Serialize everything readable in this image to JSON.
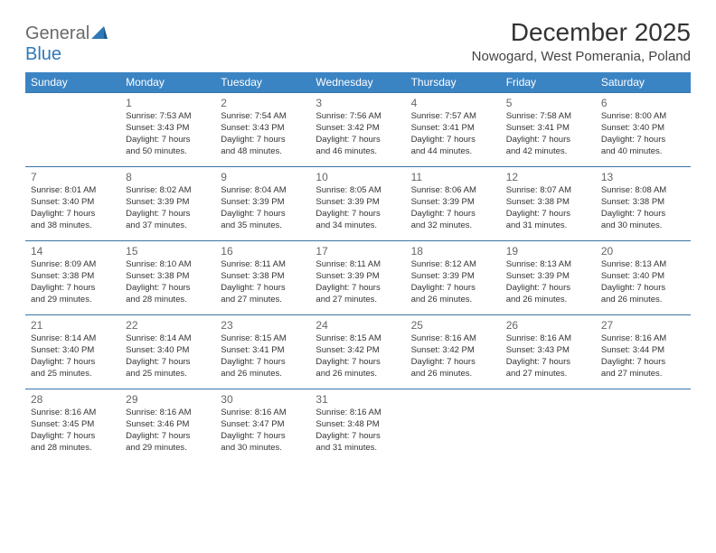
{
  "logo": {
    "general": "General",
    "blue": "Blue"
  },
  "title": "December 2025",
  "subtitle": "Nowogard, West Pomerania, Poland",
  "colors": {
    "header_bg": "#3b84c4",
    "header_text": "#ffffff",
    "row_border": "#3b73a6",
    "logo_blue": "#2f78b7",
    "logo_gray": "#6a6a6a",
    "background": "#ffffff"
  },
  "typography": {
    "title_fontsize": 28,
    "subtitle_fontsize": 15,
    "header_fontsize": 12,
    "daynum_fontsize": 12,
    "cell_fontsize": 9.5
  },
  "day_headers": [
    "Sunday",
    "Monday",
    "Tuesday",
    "Wednesday",
    "Thursday",
    "Friday",
    "Saturday"
  ],
  "weeks": [
    [
      null,
      {
        "n": "1",
        "sr": "Sunrise: 7:53 AM",
        "ss": "Sunset: 3:43 PM",
        "d1": "Daylight: 7 hours",
        "d2": "and 50 minutes."
      },
      {
        "n": "2",
        "sr": "Sunrise: 7:54 AM",
        "ss": "Sunset: 3:43 PM",
        "d1": "Daylight: 7 hours",
        "d2": "and 48 minutes."
      },
      {
        "n": "3",
        "sr": "Sunrise: 7:56 AM",
        "ss": "Sunset: 3:42 PM",
        "d1": "Daylight: 7 hours",
        "d2": "and 46 minutes."
      },
      {
        "n": "4",
        "sr": "Sunrise: 7:57 AM",
        "ss": "Sunset: 3:41 PM",
        "d1": "Daylight: 7 hours",
        "d2": "and 44 minutes."
      },
      {
        "n": "5",
        "sr": "Sunrise: 7:58 AM",
        "ss": "Sunset: 3:41 PM",
        "d1": "Daylight: 7 hours",
        "d2": "and 42 minutes."
      },
      {
        "n": "6",
        "sr": "Sunrise: 8:00 AM",
        "ss": "Sunset: 3:40 PM",
        "d1": "Daylight: 7 hours",
        "d2": "and 40 minutes."
      }
    ],
    [
      {
        "n": "7",
        "sr": "Sunrise: 8:01 AM",
        "ss": "Sunset: 3:40 PM",
        "d1": "Daylight: 7 hours",
        "d2": "and 38 minutes."
      },
      {
        "n": "8",
        "sr": "Sunrise: 8:02 AM",
        "ss": "Sunset: 3:39 PM",
        "d1": "Daylight: 7 hours",
        "d2": "and 37 minutes."
      },
      {
        "n": "9",
        "sr": "Sunrise: 8:04 AM",
        "ss": "Sunset: 3:39 PM",
        "d1": "Daylight: 7 hours",
        "d2": "and 35 minutes."
      },
      {
        "n": "10",
        "sr": "Sunrise: 8:05 AM",
        "ss": "Sunset: 3:39 PM",
        "d1": "Daylight: 7 hours",
        "d2": "and 34 minutes."
      },
      {
        "n": "11",
        "sr": "Sunrise: 8:06 AM",
        "ss": "Sunset: 3:39 PM",
        "d1": "Daylight: 7 hours",
        "d2": "and 32 minutes."
      },
      {
        "n": "12",
        "sr": "Sunrise: 8:07 AM",
        "ss": "Sunset: 3:38 PM",
        "d1": "Daylight: 7 hours",
        "d2": "and 31 minutes."
      },
      {
        "n": "13",
        "sr": "Sunrise: 8:08 AM",
        "ss": "Sunset: 3:38 PM",
        "d1": "Daylight: 7 hours",
        "d2": "and 30 minutes."
      }
    ],
    [
      {
        "n": "14",
        "sr": "Sunrise: 8:09 AM",
        "ss": "Sunset: 3:38 PM",
        "d1": "Daylight: 7 hours",
        "d2": "and 29 minutes."
      },
      {
        "n": "15",
        "sr": "Sunrise: 8:10 AM",
        "ss": "Sunset: 3:38 PM",
        "d1": "Daylight: 7 hours",
        "d2": "and 28 minutes."
      },
      {
        "n": "16",
        "sr": "Sunrise: 8:11 AM",
        "ss": "Sunset: 3:38 PM",
        "d1": "Daylight: 7 hours",
        "d2": "and 27 minutes."
      },
      {
        "n": "17",
        "sr": "Sunrise: 8:11 AM",
        "ss": "Sunset: 3:39 PM",
        "d1": "Daylight: 7 hours",
        "d2": "and 27 minutes."
      },
      {
        "n": "18",
        "sr": "Sunrise: 8:12 AM",
        "ss": "Sunset: 3:39 PM",
        "d1": "Daylight: 7 hours",
        "d2": "and 26 minutes."
      },
      {
        "n": "19",
        "sr": "Sunrise: 8:13 AM",
        "ss": "Sunset: 3:39 PM",
        "d1": "Daylight: 7 hours",
        "d2": "and 26 minutes."
      },
      {
        "n": "20",
        "sr": "Sunrise: 8:13 AM",
        "ss": "Sunset: 3:40 PM",
        "d1": "Daylight: 7 hours",
        "d2": "and 26 minutes."
      }
    ],
    [
      {
        "n": "21",
        "sr": "Sunrise: 8:14 AM",
        "ss": "Sunset: 3:40 PM",
        "d1": "Daylight: 7 hours",
        "d2": "and 25 minutes."
      },
      {
        "n": "22",
        "sr": "Sunrise: 8:14 AM",
        "ss": "Sunset: 3:40 PM",
        "d1": "Daylight: 7 hours",
        "d2": "and 25 minutes."
      },
      {
        "n": "23",
        "sr": "Sunrise: 8:15 AM",
        "ss": "Sunset: 3:41 PM",
        "d1": "Daylight: 7 hours",
        "d2": "and 26 minutes."
      },
      {
        "n": "24",
        "sr": "Sunrise: 8:15 AM",
        "ss": "Sunset: 3:42 PM",
        "d1": "Daylight: 7 hours",
        "d2": "and 26 minutes."
      },
      {
        "n": "25",
        "sr": "Sunrise: 8:16 AM",
        "ss": "Sunset: 3:42 PM",
        "d1": "Daylight: 7 hours",
        "d2": "and 26 minutes."
      },
      {
        "n": "26",
        "sr": "Sunrise: 8:16 AM",
        "ss": "Sunset: 3:43 PM",
        "d1": "Daylight: 7 hours",
        "d2": "and 27 minutes."
      },
      {
        "n": "27",
        "sr": "Sunrise: 8:16 AM",
        "ss": "Sunset: 3:44 PM",
        "d1": "Daylight: 7 hours",
        "d2": "and 27 minutes."
      }
    ],
    [
      {
        "n": "28",
        "sr": "Sunrise: 8:16 AM",
        "ss": "Sunset: 3:45 PM",
        "d1": "Daylight: 7 hours",
        "d2": "and 28 minutes."
      },
      {
        "n": "29",
        "sr": "Sunrise: 8:16 AM",
        "ss": "Sunset: 3:46 PM",
        "d1": "Daylight: 7 hours",
        "d2": "and 29 minutes."
      },
      {
        "n": "30",
        "sr": "Sunrise: 8:16 AM",
        "ss": "Sunset: 3:47 PM",
        "d1": "Daylight: 7 hours",
        "d2": "and 30 minutes."
      },
      {
        "n": "31",
        "sr": "Sunrise: 8:16 AM",
        "ss": "Sunset: 3:48 PM",
        "d1": "Daylight: 7 hours",
        "d2": "and 31 minutes."
      },
      null,
      null,
      null
    ]
  ]
}
